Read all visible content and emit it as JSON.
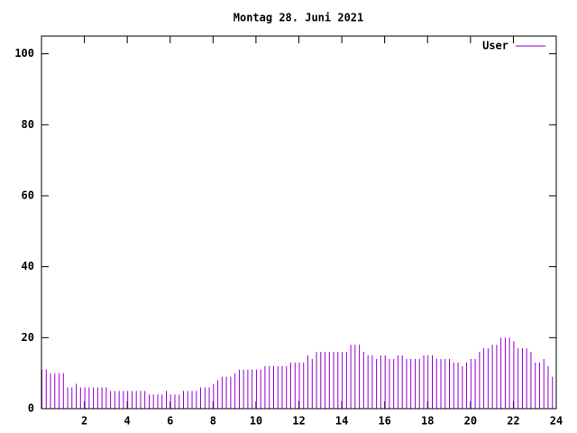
{
  "chart_data": {
    "type": "impulse",
    "title": "Montag 28. Juni 2021",
    "xlim": [
      0,
      24
    ],
    "xticks": [
      2,
      4,
      6,
      8,
      10,
      12,
      14,
      16,
      18,
      20,
      22,
      24
    ],
    "ylim": [
      0,
      105
    ],
    "yticks": [
      0,
      20,
      40,
      60,
      80,
      100
    ],
    "legend": "top-right",
    "x": [
      0,
      0.2,
      0.4,
      0.6,
      0.8,
      1,
      1.2,
      1.4,
      1.6,
      1.8,
      2,
      2.2,
      2.4,
      2.6,
      2.8,
      3,
      3.2,
      3.4,
      3.6,
      3.8,
      4,
      4.2,
      4.4,
      4.6,
      4.8,
      5,
      5.2,
      5.4,
      5.6,
      5.8,
      6,
      6.2,
      6.4,
      6.6,
      6.8,
      7,
      7.2,
      7.4,
      7.6,
      7.8,
      8,
      8.2,
      8.4,
      8.6,
      8.8,
      9,
      9.2,
      9.4,
      9.6,
      9.8,
      10,
      10.2,
      10.4,
      10.6,
      10.8,
      11,
      11.2,
      11.4,
      11.6,
      11.8,
      12,
      12.2,
      12.4,
      12.6,
      12.8,
      13,
      13.2,
      13.4,
      13.6,
      13.8,
      14,
      14.2,
      14.4,
      14.6,
      14.8,
      15,
      15.2,
      15.4,
      15.6,
      15.8,
      16,
      16.2,
      16.4,
      16.6,
      16.8,
      17,
      17.2,
      17.4,
      17.6,
      17.8,
      18,
      18.2,
      18.4,
      18.6,
      18.8,
      19,
      19.2,
      19.4,
      19.6,
      19.8,
      20,
      20.2,
      20.4,
      20.6,
      20.8,
      21,
      21.2,
      21.4,
      21.6,
      21.8,
      22,
      22.2,
      22.4,
      22.6,
      22.8,
      23,
      23.2,
      23.4,
      23.6,
      23.8
    ],
    "series": [
      {
        "name": "User",
        "color": "#9400d3",
        "values": [
          11,
          11,
          10,
          10,
          10,
          10,
          6,
          6,
          7,
          6,
          6,
          6,
          6,
          6,
          6,
          6,
          5,
          5,
          5,
          5,
          5,
          5,
          5,
          5,
          5,
          4,
          4,
          4,
          4,
          5,
          4,
          4,
          4,
          5,
          5,
          5,
          5,
          6,
          6,
          6,
          7,
          8,
          9,
          9,
          9,
          10,
          11,
          11,
          11,
          11,
          11,
          11,
          12,
          12,
          12,
          12,
          12,
          12,
          13,
          13,
          13,
          13,
          15,
          14,
          16,
          16,
          16,
          16,
          16,
          16,
          16,
          16,
          18,
          18,
          18,
          16,
          15,
          15,
          14,
          15,
          15,
          14,
          14,
          15,
          15,
          14,
          14,
          14,
          14,
          15,
          15,
          15,
          14,
          14,
          14,
          14,
          13,
          13,
          12,
          13,
          14,
          14,
          16,
          17,
          17,
          18,
          18,
          20,
          20,
          20,
          19,
          17,
          17,
          17,
          16,
          13,
          13,
          14,
          12,
          9
        ]
      }
    ]
  }
}
